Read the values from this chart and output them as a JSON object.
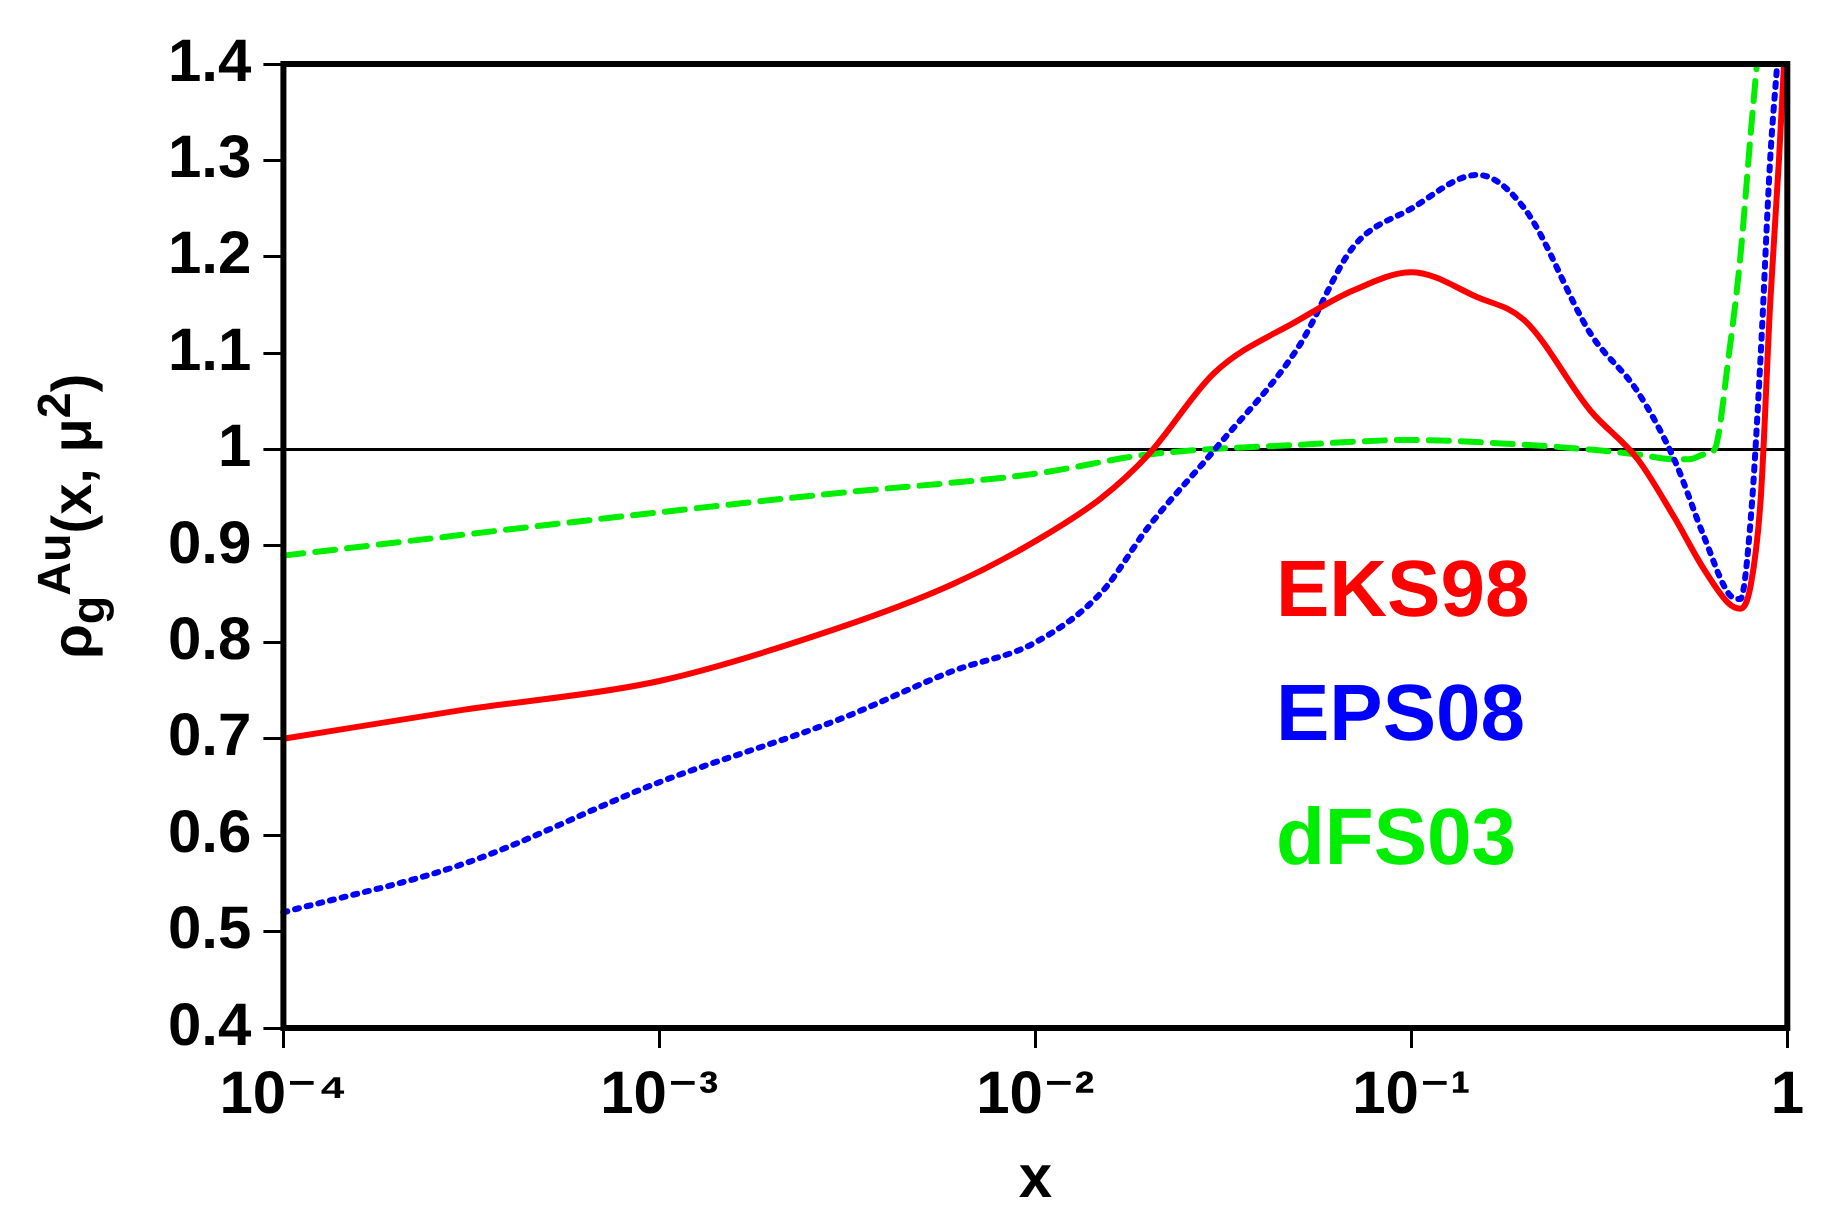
{
  "chart_data": {
    "type": "line",
    "xlabel": "x",
    "ylabel": "ρ$_{g}$$^{Au}$(x, μ$^{2}$)",
    "log": "x",
    "xlim": [
      0.0001,
      1
    ],
    "xticks": [
      {
        "value": 0.0001,
        "label": "10⁻⁴"
      },
      {
        "value": 0.001,
        "label": "10⁻³"
      },
      {
        "value": 0.01,
        "label": "10⁻²"
      },
      {
        "value": 0.1,
        "label": "10⁻¹"
      },
      1
    ],
    "ylim": [
      0.4,
      1.4
    ],
    "yticks": [
      0.4,
      0.5,
      0.6,
      0.7,
      0.8,
      0.9,
      1,
      1.1,
      1.2,
      1.3,
      1.4
    ],
    "grid": false,
    "legend": "right",
    "marker": "none",
    "ref_lines": [
      {
        "axis": "y",
        "value": 1,
        "color": "#000000"
      }
    ],
    "series": [
      {
        "name": "EKS98",
        "color": "#ff0000",
        "line_style": "solid",
        "x": [
          0.0001,
          0.0003,
          0.001,
          0.003,
          0.006,
          0.01,
          0.015,
          0.02,
          0.03,
          0.05,
          0.07,
          0.1,
          0.15,
          0.2,
          0.3,
          0.4,
          0.5,
          0.6,
          0.7,
          0.75,
          0.8,
          0.85,
          0.9,
          0.95,
          0.98
        ],
        "values": [
          0.7,
          0.73,
          0.76,
          0.815,
          0.86,
          0.905,
          0.95,
          0.995,
          1.08,
          1.134,
          1.165,
          1.184,
          1.158,
          1.134,
          1.04,
          0.99,
          0.93,
          0.876,
          0.84,
          0.835,
          0.86,
          0.95,
          1.15,
          1.3,
          1.4
        ]
      },
      {
        "name": "EPS08",
        "color": "#0000ff",
        "line_style": "dotted",
        "x": [
          0.0001,
          0.0003,
          0.001,
          0.003,
          0.006,
          0.01,
          0.015,
          0.02,
          0.03,
          0.05,
          0.07,
          0.1,
          0.15,
          0.2,
          0.3,
          0.4,
          0.5,
          0.6,
          0.7,
          0.75,
          0.8,
          0.85,
          0.9,
          0.94
        ],
        "values": [
          0.52,
          0.57,
          0.655,
          0.72,
          0.77,
          0.8,
          0.852,
          0.92,
          1.0,
          1.106,
          1.21,
          1.25,
          1.285,
          1.25,
          1.12,
          1.06,
          0.99,
          0.91,
          0.85,
          0.845,
          0.93,
          1.1,
          1.3,
          1.4
        ]
      },
      {
        "name": "dFS03",
        "color": "#00ee00",
        "line_style": "dashed",
        "x": [
          0.0001,
          0.001,
          0.003,
          0.01,
          0.02,
          0.05,
          0.1,
          0.2,
          0.3,
          0.4,
          0.5,
          0.55,
          0.6,
          0.64,
          0.7,
          0.75,
          0.8,
          0.83
        ],
        "values": [
          0.89,
          0.935,
          0.955,
          0.975,
          0.995,
          1.005,
          1.01,
          1.005,
          1.0,
          0.995,
          0.99,
          0.99,
          0.995,
          1.0,
          1.1,
          1.2,
          1.33,
          1.4
        ]
      }
    ]
  }
}
